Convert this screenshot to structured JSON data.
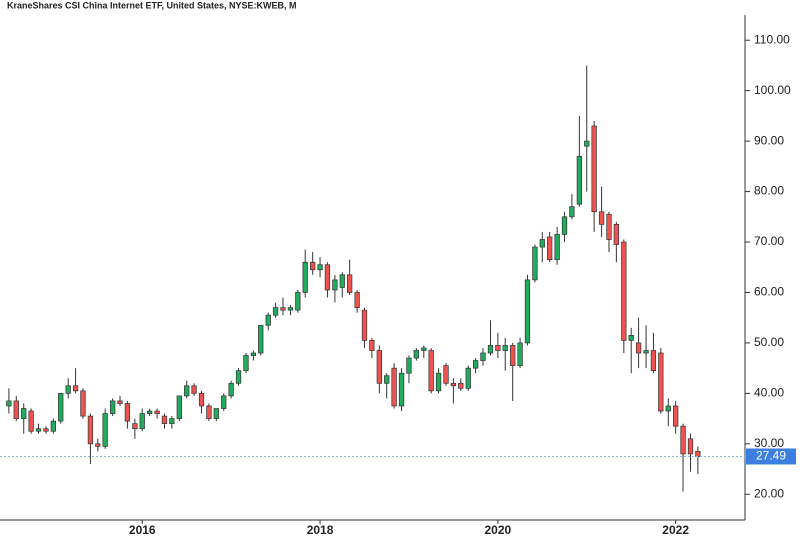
{
  "chart_data": {
    "type": "candlestick",
    "title": "KraneShares CSI China Internet ETF, United States, NYSE:KWEB, M",
    "x": [
      2014.5,
      2014.583,
      2014.667,
      2014.75,
      2014.833,
      2014.917,
      2015.0,
      2015.083,
      2015.167,
      2015.25,
      2015.333,
      2015.417,
      2015.5,
      2015.583,
      2015.667,
      2015.75,
      2015.833,
      2015.917,
      2016.0,
      2016.083,
      2016.167,
      2016.25,
      2016.333,
      2016.417,
      2016.5,
      2016.583,
      2016.667,
      2016.75,
      2016.833,
      2016.917,
      2017.0,
      2017.083,
      2017.167,
      2017.25,
      2017.333,
      2017.417,
      2017.5,
      2017.583,
      2017.667,
      2017.75,
      2017.833,
      2017.917,
      2018.0,
      2018.083,
      2018.167,
      2018.25,
      2018.333,
      2018.417,
      2018.5,
      2018.583,
      2018.667,
      2018.75,
      2018.833,
      2018.917,
      2019.0,
      2019.083,
      2019.167,
      2019.25,
      2019.333,
      2019.417,
      2019.5,
      2019.583,
      2019.667,
      2019.75,
      2019.833,
      2019.917,
      2020.0,
      2020.083,
      2020.167,
      2020.25,
      2020.333,
      2020.417,
      2020.5,
      2020.583,
      2020.667,
      2020.75,
      2020.833,
      2020.917,
      2021.0,
      2021.083,
      2021.167,
      2021.25,
      2021.333,
      2021.417,
      2021.5,
      2021.583,
      2021.667,
      2021.75,
      2021.833,
      2021.917,
      2022.0,
      2022.083,
      2022.167,
      2022.25
    ],
    "open": [
      37.5,
      38.5,
      35,
      36.5,
      32.5,
      33,
      32.5,
      34.5,
      40,
      41.5,
      40.5,
      35.5,
      30,
      29.5,
      36,
      38.5,
      38,
      34,
      33,
      36,
      36.5,
      35.5,
      34,
      35,
      39.5,
      41.5,
      40,
      37.5,
      35,
      37,
      39.5,
      42,
      44.5,
      47.5,
      48,
      53.5,
      55.5,
      57,
      56.5,
      56.5,
      60,
      66,
      64.5,
      65.5,
      60.5,
      61,
      63.5,
      60,
      56.5,
      50.5,
      48.5,
      42,
      45,
      37.5,
      44,
      47,
      48.5,
      48.5,
      40.5,
      45.5,
      42,
      42,
      41,
      45,
      46.5,
      48,
      49.5,
      48.5,
      49.5,
      45.5,
      50,
      62.5,
      69,
      71,
      66.5,
      71.5,
      75,
      77.5,
      89,
      93,
      76,
      75.5,
      73.5,
      70,
      50.5,
      50,
      48,
      48.5,
      48,
      36.5,
      37.5,
      33.5,
      31,
      28.5
    ],
    "high": [
      41,
      39.5,
      38,
      37,
      34,
      33.5,
      35,
      40,
      43,
      45,
      41,
      36,
      31,
      37,
      39,
      39.5,
      38.5,
      35,
      37,
      37,
      37,
      36,
      35.5,
      39.5,
      42.5,
      42,
      40.5,
      38,
      37,
      40,
      42.5,
      45,
      48,
      48.5,
      53.5,
      56,
      58,
      59,
      57.5,
      60.5,
      68.5,
      68,
      67,
      66,
      63.5,
      64,
      66.5,
      60.5,
      57,
      51,
      49.5,
      44,
      46,
      45,
      47.5,
      49,
      49.5,
      49,
      45,
      46,
      43,
      43,
      45.5,
      47,
      49,
      54.5,
      52,
      51,
      50,
      51,
      63.5,
      69.5,
      72,
      72,
      73,
      76,
      79.5,
      95,
      105,
      94,
      81,
      76,
      74,
      70.5,
      53,
      55,
      53.5,
      52,
      49,
      39,
      38.5,
      34,
      32,
      29.5
    ],
    "low": [
      36,
      34.5,
      32,
      32,
      32,
      32,
      32,
      34,
      39,
      40,
      35,
      26,
      28.5,
      29,
      35.5,
      37.5,
      33,
      31,
      32.5,
      35.5,
      35,
      33,
      33,
      34.5,
      39,
      39.5,
      36,
      34.5,
      34.5,
      36.5,
      39,
      41.5,
      44,
      46.5,
      47.5,
      52.5,
      55,
      55.5,
      55.5,
      56,
      59,
      63.5,
      63,
      59,
      58,
      59,
      59.5,
      56,
      49,
      47,
      40,
      39,
      37,
      36.5,
      42,
      46.5,
      47,
      40,
      40,
      41.5,
      38,
      40.5,
      40.5,
      44,
      45.5,
      47.5,
      47,
      44.5,
      38.5,
      45,
      49.5,
      62,
      66,
      66,
      65.5,
      70,
      74.5,
      77,
      80,
      72,
      71,
      68,
      66,
      48,
      44,
      45,
      45,
      44,
      36,
      33.5,
      32,
      20.5,
      24.5,
      24
    ],
    "close": [
      38.5,
      35,
      37,
      32.5,
      33,
      32.5,
      34.5,
      40,
      41.5,
      40.5,
      35.5,
      30,
      29.5,
      36,
      38.5,
      38,
      34.5,
      33,
      36,
      36.5,
      36,
      34,
      35,
      39.5,
      41.5,
      40,
      37.5,
      35,
      37,
      39.5,
      42,
      44.5,
      47.5,
      48,
      53.5,
      55.5,
      57,
      56.5,
      57,
      60,
      66,
      64.5,
      65.5,
      60.5,
      62.5,
      63.5,
      60,
      57,
      50.5,
      48.5,
      42,
      43.5,
      37.5,
      44,
      47,
      48.5,
      49,
      40.5,
      44,
      42,
      41.5,
      41,
      45,
      46.5,
      48,
      49.5,
      48.5,
      49.5,
      45.5,
      50,
      62.5,
      69,
      70.5,
      66.5,
      71.5,
      75,
      77,
      87,
      90,
      76,
      73.5,
      70.5,
      69.5,
      50.5,
      51.5,
      48,
      48.5,
      44.5,
      36.5,
      37.5,
      33.5,
      28,
      28,
      27.49
    ],
    "up_color": "#22ab5e",
    "down_color": "#ef5350",
    "xlim": [
      2014.4,
      2022.78
    ],
    "xticks": [
      2016,
      2018,
      2020,
      2022
    ],
    "ylim": [
      14.9,
      115
    ],
    "yticks": [
      {
        "value": 20,
        "label": "20.00"
      },
      {
        "value": 30,
        "label": "30.00"
      },
      {
        "value": 40,
        "label": "40.00"
      },
      {
        "value": 50,
        "label": "50.00"
      },
      {
        "value": 60,
        "label": "60.00"
      },
      {
        "value": 70,
        "label": "70.00"
      },
      {
        "value": 80,
        "label": "80.00"
      },
      {
        "value": 90,
        "label": "90.00"
      },
      {
        "value": 100,
        "label": "100.00"
      },
      {
        "value": 110,
        "label": "110.00"
      }
    ],
    "last_price": 27.49,
    "last_price_color": "#3d7fe0"
  }
}
